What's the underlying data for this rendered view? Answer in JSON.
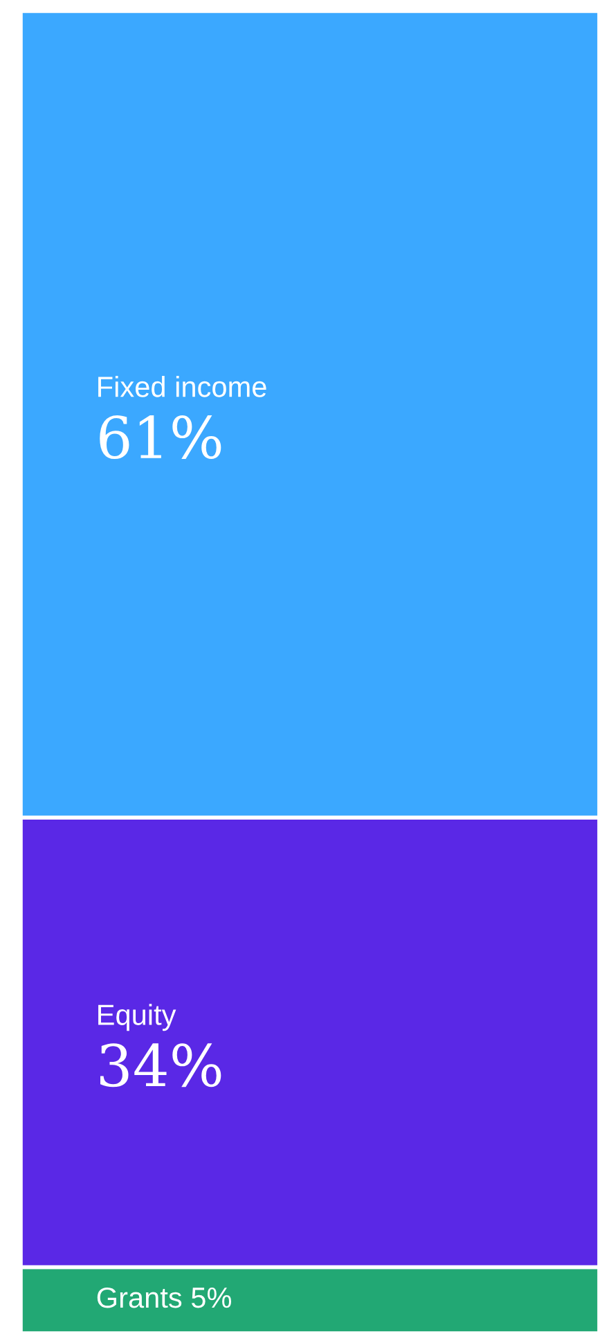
{
  "chart_data": {
    "type": "bar",
    "stacked": true,
    "categories": [
      null
    ],
    "series": [
      {
        "name": "Grants",
        "color": "#22a874",
        "values": [
          5
        ],
        "value_labels": [
          "5%"
        ]
      },
      {
        "name": "Equity",
        "color": "#5a28e6",
        "values": [
          34
        ],
        "value_labels": [
          "34%"
        ]
      },
      {
        "name": "Fixed income",
        "color": "#3ba8ff",
        "values": [
          61
        ],
        "value_labels": [
          "61%"
        ]
      }
    ],
    "legend": false
  }
}
